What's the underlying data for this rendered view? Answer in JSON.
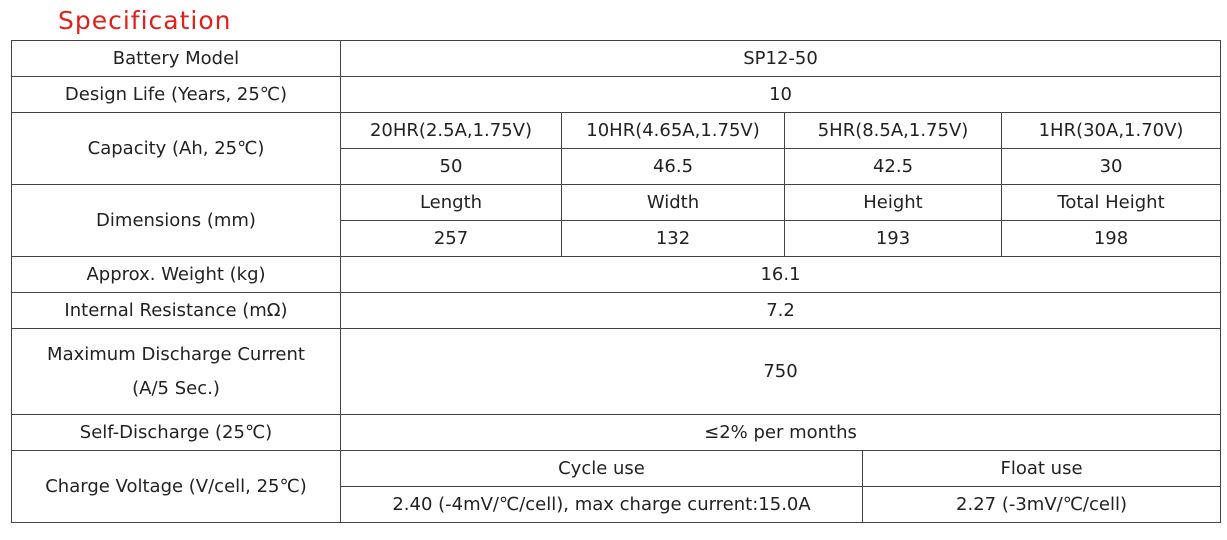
{
  "title": "Specification",
  "table": {
    "rows": [
      {
        "label": "Battery Model",
        "value": "SP12-50"
      },
      {
        "label": "Design Life (Years, 25℃)",
        "value": "10"
      },
      {
        "label": "Capacity (Ah, 25℃)",
        "headers": [
          "20HR(2.5A,1.75V)",
          "10HR(4.65A,1.75V)",
          "5HR(8.5A,1.75V)",
          "1HR(30A,1.70V)"
        ],
        "values": [
          "50",
          "46.5",
          "42.5",
          "30"
        ]
      },
      {
        "label": "Dimensions (mm)",
        "headers": [
          "Length",
          "Width",
          "Height",
          "Total Height"
        ],
        "values": [
          "257",
          "132",
          "193",
          "198"
        ]
      },
      {
        "label": "Approx. Weight (kg)",
        "value": "16.1"
      },
      {
        "label": "Internal Resistance (mΩ)",
        "value": "7.2"
      },
      {
        "label": "Maximum Discharge Current (A/5 Sec.)",
        "value": "750"
      },
      {
        "label": "Self-Discharge (25℃)",
        "value": "≤2% per months"
      },
      {
        "label": "Charge Voltage (V/cell, 25℃)",
        "headers": [
          "Cycle use",
          "Float use"
        ],
        "values": [
          "2.40 (-4mV/℃/cell), max charge current:15.0A",
          "2.27 (-3mV/℃/cell)"
        ]
      }
    ]
  }
}
